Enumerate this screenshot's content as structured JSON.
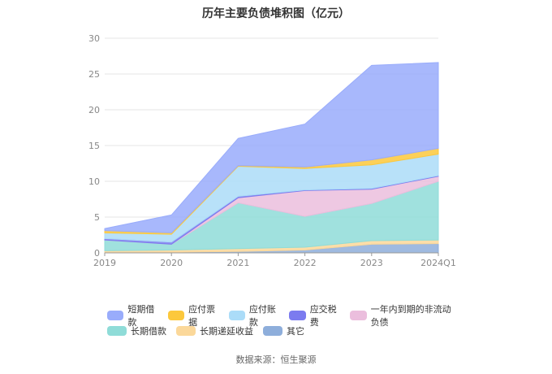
{
  "chart_data": {
    "type": "area",
    "stacked": true,
    "title": "历年主要负债堆积图（亿元）",
    "categories": [
      "2019",
      "2020",
      "2021",
      "2022",
      "2023",
      "2024Q1"
    ],
    "ylim": [
      0,
      30
    ],
    "yticks": [
      0,
      5,
      10,
      15,
      20,
      25,
      30
    ],
    "grid": true,
    "legend_position": "bottom",
    "series": [
      {
        "name": "其它",
        "color": "#8eaedb",
        "values": [
          0.1,
          0.1,
          0.2,
          0.4,
          1.2,
          1.3
        ]
      },
      {
        "name": "长期递延收益",
        "color": "#fbd89a",
        "values": [
          0.2,
          0.3,
          0.4,
          0.4,
          0.5,
          0.5
        ]
      },
      {
        "name": "长期借款",
        "color": "#8fdcd8",
        "values": [
          1.5,
          0.8,
          6.4,
          4.3,
          5.2,
          8.2
        ]
      },
      {
        "name": "一年内到期的非流动负债",
        "color": "#ebbedd",
        "values": [
          0.0,
          0.0,
          0.7,
          3.6,
          2.0,
          0.7
        ]
      },
      {
        "name": "应交税费",
        "color": "#7b7bef",
        "values": [
          0.2,
          0.3,
          0.2,
          0.1,
          0.1,
          0.1
        ]
      },
      {
        "name": "应付账款",
        "color": "#abdcf8",
        "values": [
          0.8,
          1.1,
          4.2,
          3.0,
          3.3,
          3.0
        ]
      },
      {
        "name": "应付票据",
        "color": "#fcc83c",
        "values": [
          0.3,
          0.2,
          0.1,
          0.2,
          0.7,
          0.8
        ]
      },
      {
        "name": "短期借款",
        "color": "#99acfb",
        "values": [
          0.3,
          2.5,
          3.8,
          6.0,
          13.2,
          12.0
        ]
      }
    ],
    "legend_order": [
      "短期借款",
      "应付票据",
      "应付账款",
      "应交税费",
      "一年内到期的非流动负债",
      "长期借款",
      "长期递延收益",
      "其它"
    ],
    "source": "数据来源：恒生聚源"
  }
}
